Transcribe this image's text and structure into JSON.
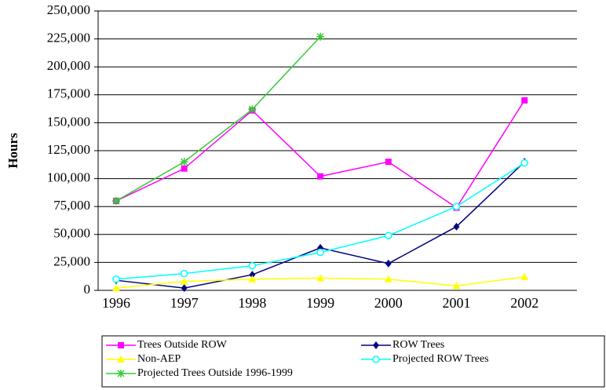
{
  "chart_data": {
    "type": "line",
    "y_label": "Hours",
    "categories": [
      "1996",
      "1997",
      "1998",
      "1999",
      "2000",
      "2001",
      "2002"
    ],
    "series": [
      {
        "name": "Trees Outside ROW",
        "color": "#ff00ff",
        "marker": "square",
        "values": [
          80000,
          109000,
          161000,
          102000,
          115000,
          74000,
          170000
        ]
      },
      {
        "name": "ROW Trees",
        "color": "#000080",
        "marker": "diamond",
        "values": [
          9000,
          2000,
          14000,
          38000,
          24000,
          57000,
          115000
        ]
      },
      {
        "name": "Non-AEP",
        "color": "#ffff00",
        "marker": "triangle",
        "values": [
          2000,
          8000,
          10000,
          11000,
          10000,
          4000,
          12000
        ]
      },
      {
        "name": "Projected ROW Trees",
        "color": "#00ffff",
        "marker": "circle",
        "values": [
          10000,
          15000,
          22000,
          34000,
          49000,
          75000,
          114000
        ]
      },
      {
        "name": "Projected Trees Outside 1996-1999",
        "color": "#33cc33",
        "marker": "asterisk",
        "values": [
          80000,
          115000,
          162000,
          227000,
          null,
          null,
          null
        ]
      }
    ],
    "ylim": [
      0,
      250000
    ],
    "yticks": [
      0,
      {
        "value": 25000,
        "label": "25,000"
      },
      {
        "value": 50000,
        "label": "50,000"
      },
      {
        "value": 75000,
        "label": "75,000"
      },
      {
        "value": 100000,
        "label": "100,000"
      },
      {
        "value": 125000,
        "label": "125,000"
      },
      {
        "value": 150000,
        "label": "150,000"
      },
      {
        "value": 175000,
        "label": "175,000"
      },
      {
        "value": 200000,
        "label": "200,000"
      },
      {
        "value": 225000,
        "label": "225,000"
      },
      {
        "value": 250000,
        "label": "250,000"
      }
    ],
    "grid": true
  }
}
